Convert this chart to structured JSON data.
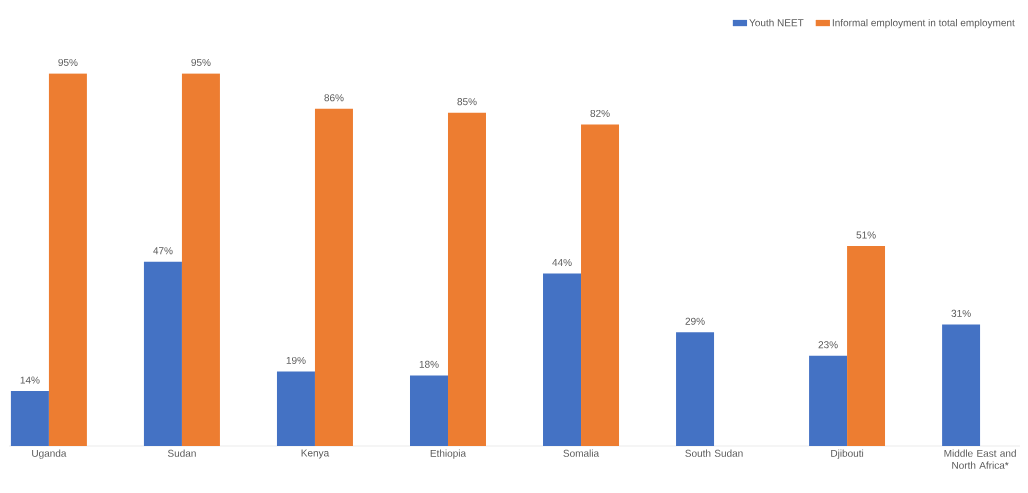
{
  "chart_data": {
    "type": "bar",
    "categories": [
      "Uganda",
      "Sudan",
      "Kenya",
      "Ethiopia",
      "Somalia",
      "South Sudan",
      "Djibouti",
      "Middle East and North Africa*"
    ],
    "series": [
      {
        "name": "Youth NEET",
        "color": "#4472c4",
        "values": [
          14,
          47,
          19,
          18,
          44,
          29,
          23,
          31
        ],
        "value_labels": [
          "14%",
          "47%",
          "19%",
          "18%",
          "44%",
          "29%",
          "23%",
          "31%"
        ]
      },
      {
        "name": "Informal employment in total employment",
        "color": "#ed7d31",
        "values": [
          95,
          95,
          86,
          85,
          82,
          null,
          51,
          null
        ],
        "value_labels": [
          "95%",
          "95%",
          "86%",
          "85%",
          "82%",
          null,
          "51%",
          null
        ]
      }
    ],
    "legend": "top right"
  }
}
